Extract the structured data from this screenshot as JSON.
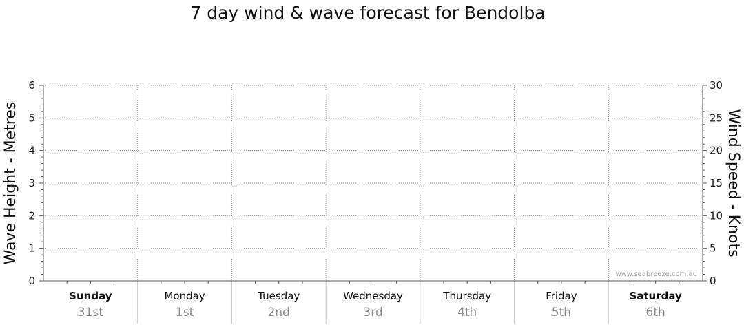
{
  "chart_data": {
    "type": "line",
    "title": "7 day wind & wave forecast for Bendolba",
    "y_left": {
      "label": "Wave Height - Metres",
      "range": [
        0,
        6
      ],
      "ticks": [
        0,
        1,
        2,
        3,
        4,
        5,
        6
      ]
    },
    "y_right": {
      "label": "Wind Speed - Knots",
      "range": [
        0,
        30
      ],
      "ticks": [
        0,
        5,
        10,
        15,
        20,
        25,
        30
      ]
    },
    "days": [
      {
        "name": "Sunday",
        "date": "31st",
        "bold": true
      },
      {
        "name": "Monday",
        "date": "1st",
        "bold": false
      },
      {
        "name": "Tuesday",
        "date": "2nd",
        "bold": false
      },
      {
        "name": "Wednesday",
        "date": "3rd",
        "bold": false
      },
      {
        "name": "Thursday",
        "date": "4th",
        "bold": false
      },
      {
        "name": "Friday",
        "date": "5th",
        "bold": false
      },
      {
        "name": "Saturday",
        "date": "6th",
        "bold": true
      }
    ],
    "series": [],
    "grid": true,
    "watermark": "www.seabreeze.com.au"
  }
}
